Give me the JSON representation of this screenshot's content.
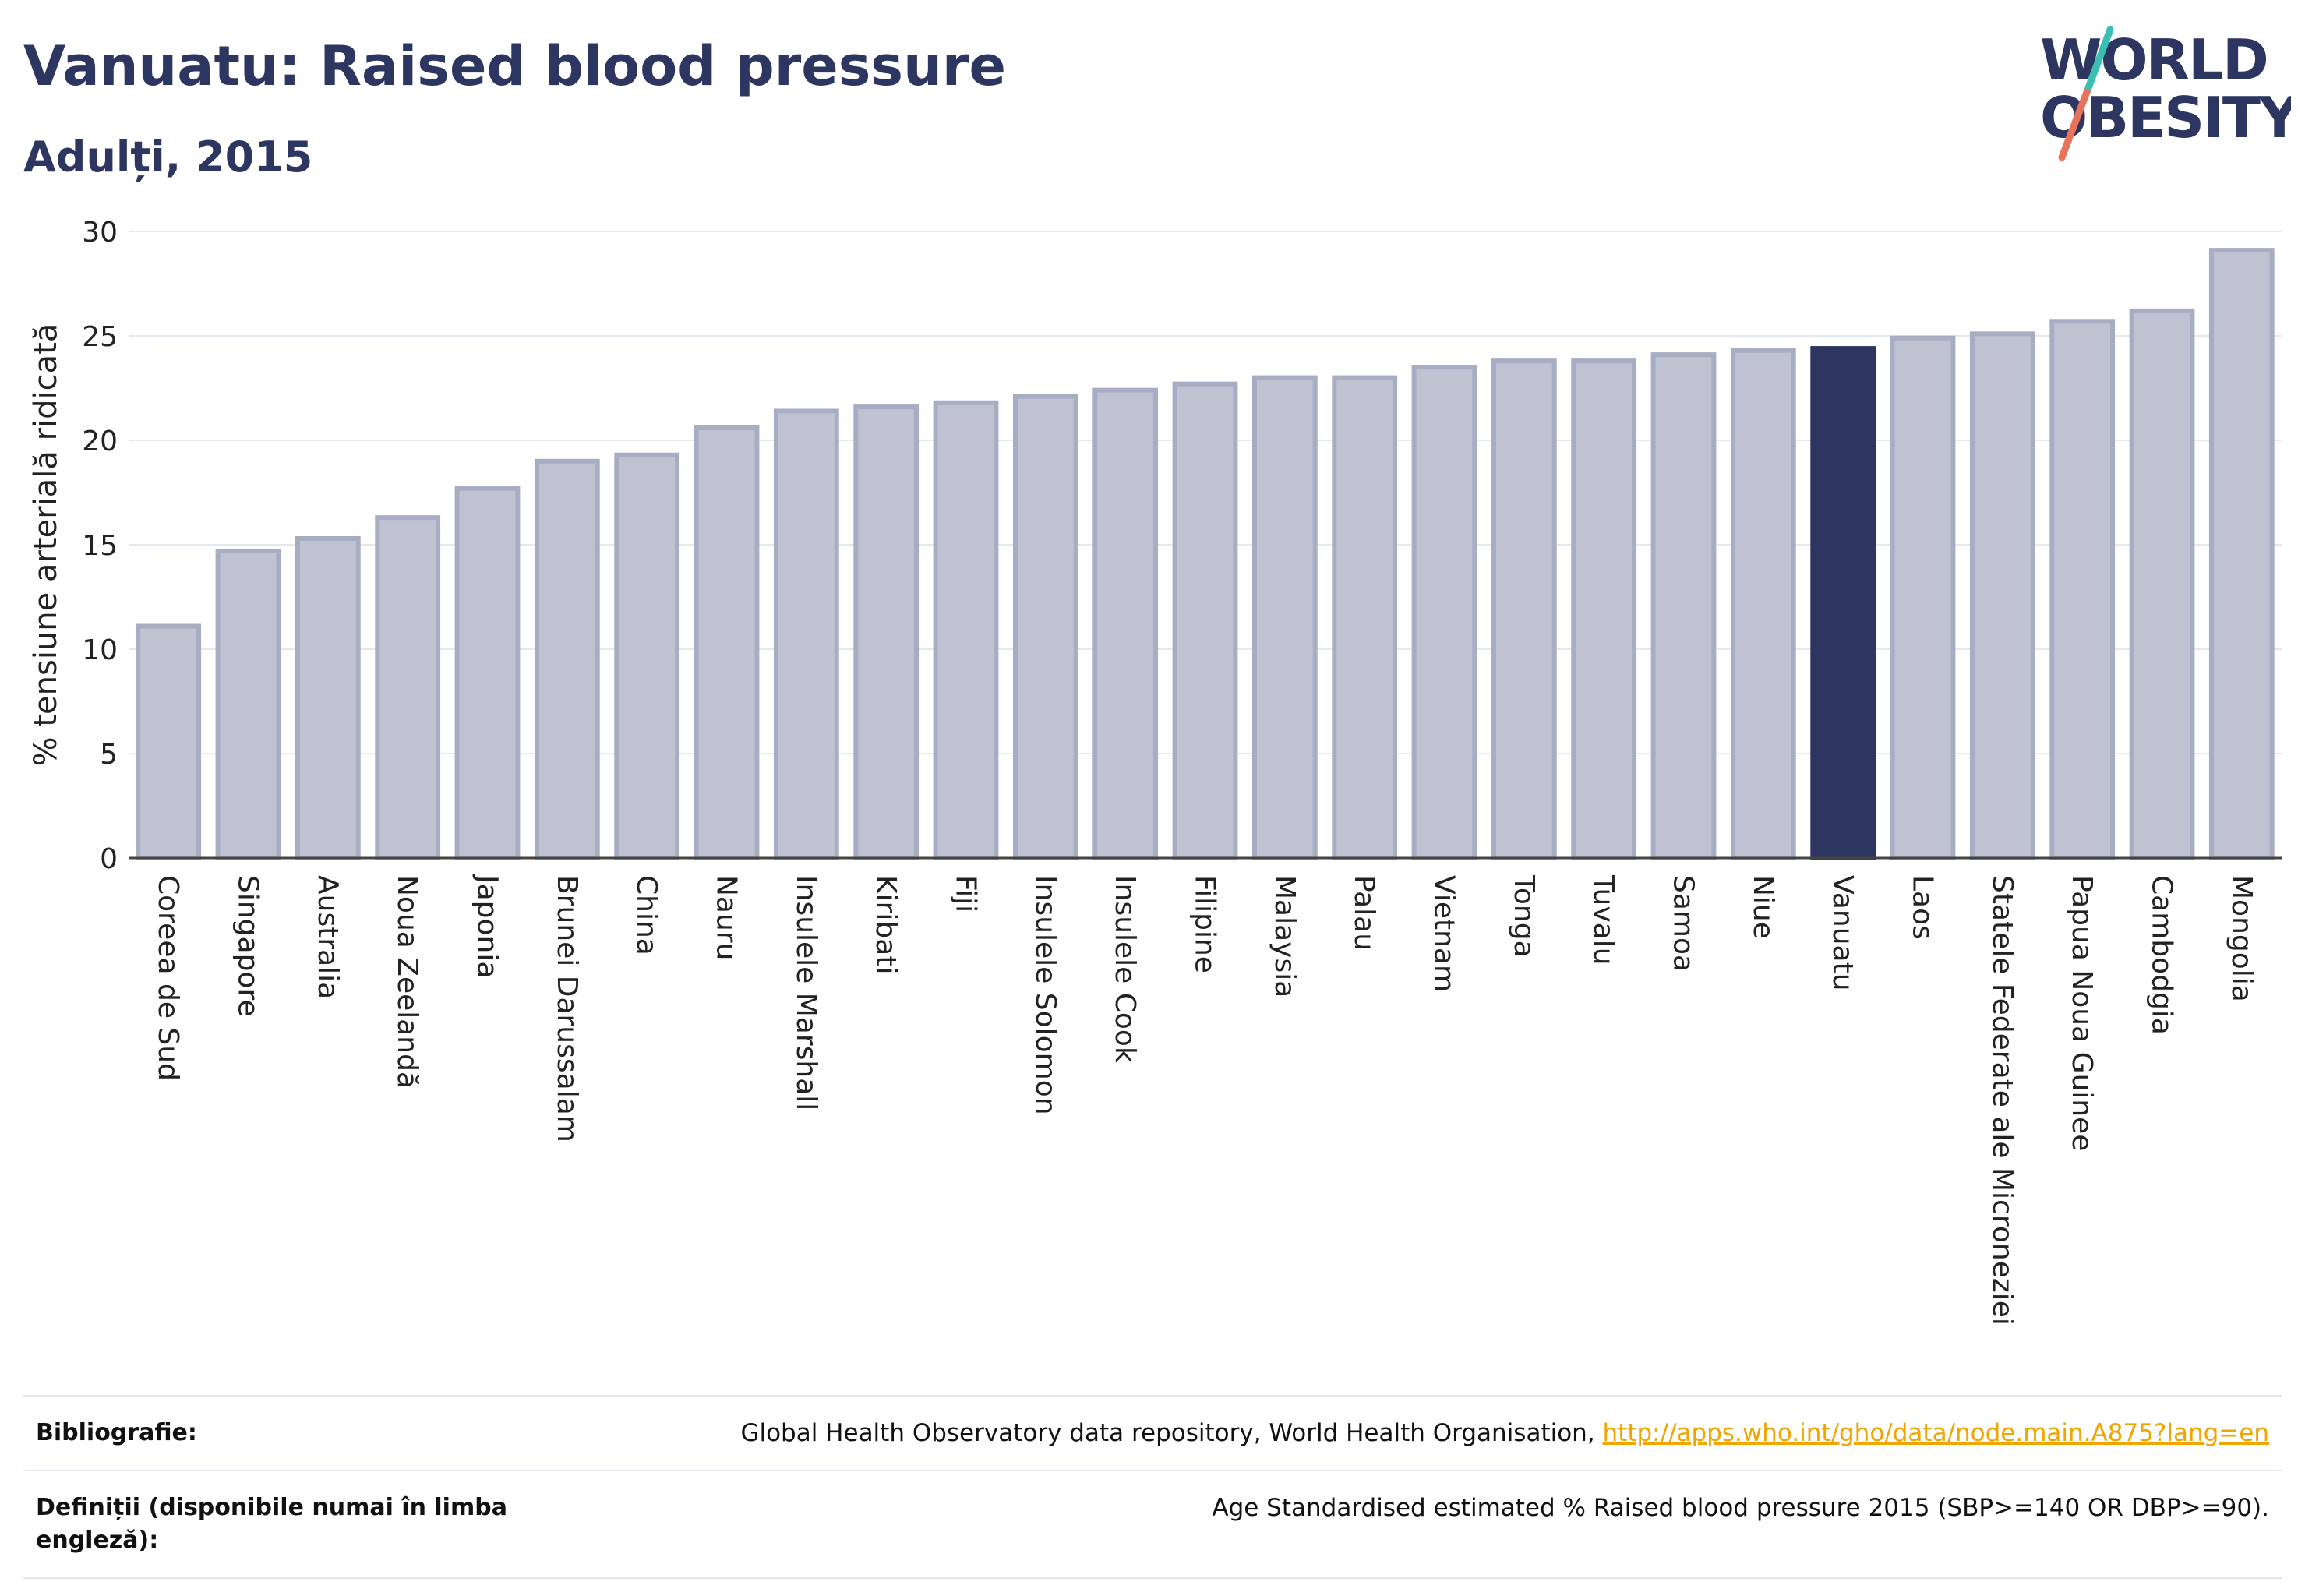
{
  "header": {
    "title": "Vanuatu: Raised blood pressure",
    "subtitle": "Adulți, 2015"
  },
  "logo": {
    "line1": "WORLD",
    "line2": "OBESITY",
    "slash_colors": [
      "#3bbfb2",
      "#e8735a"
    ],
    "text_color": "#2d3561"
  },
  "chart_data": {
    "type": "bar",
    "ylabel": "% tensiune arterială ridicată",
    "ylim": [
      0,
      30
    ],
    "yticks": [
      0,
      5,
      10,
      15,
      20,
      25,
      30
    ],
    "grid": true,
    "highlight": "Vanuatu",
    "highlight_color": "#2d3561",
    "bar_color": "#bfc3d1",
    "bar_edge_color": "#a7adc2",
    "categories": [
      "Coreea de Sud",
      "Singapore",
      "Australia",
      "Noua Zeelandă",
      "Japonia",
      "Brunei Darussalam",
      "China",
      "Nauru",
      "Insulele Marshall",
      "Kiribati",
      "Fiji",
      "Insulele Solomon",
      "Insulele Cook",
      "Filipine",
      "Malaysia",
      "Palau",
      "Vietnam",
      "Tonga",
      "Tuvalu",
      "Samoa",
      "Niue",
      "Vanuatu",
      "Laos",
      "Statele Federate ale Microneziei",
      "Papua Noua Guinee",
      "Cambodgia",
      "Mongolia"
    ],
    "values": [
      11.1,
      14.7,
      15.3,
      16.3,
      17.7,
      19.0,
      19.3,
      20.6,
      21.4,
      21.6,
      21.8,
      22.1,
      22.4,
      22.7,
      23.0,
      23.0,
      23.5,
      23.8,
      23.8,
      24.1,
      24.3,
      24.4,
      24.9,
      25.1,
      25.7,
      26.2,
      29.1
    ]
  },
  "footer": {
    "bibliography_label": "Bibliografie:",
    "bibliography_text": "Global Health Observatory data repository, World Health Organisation, ",
    "bibliography_link": "http://apps.who.int/gho/data/node.main.A875?lang=en",
    "definitions_label": "Definiții (disponibile numai în limba engleză):",
    "definitions_text": "Age Standardised estimated % Raised blood pressure 2015 (SBP>=140 OR DBP>=90)."
  }
}
